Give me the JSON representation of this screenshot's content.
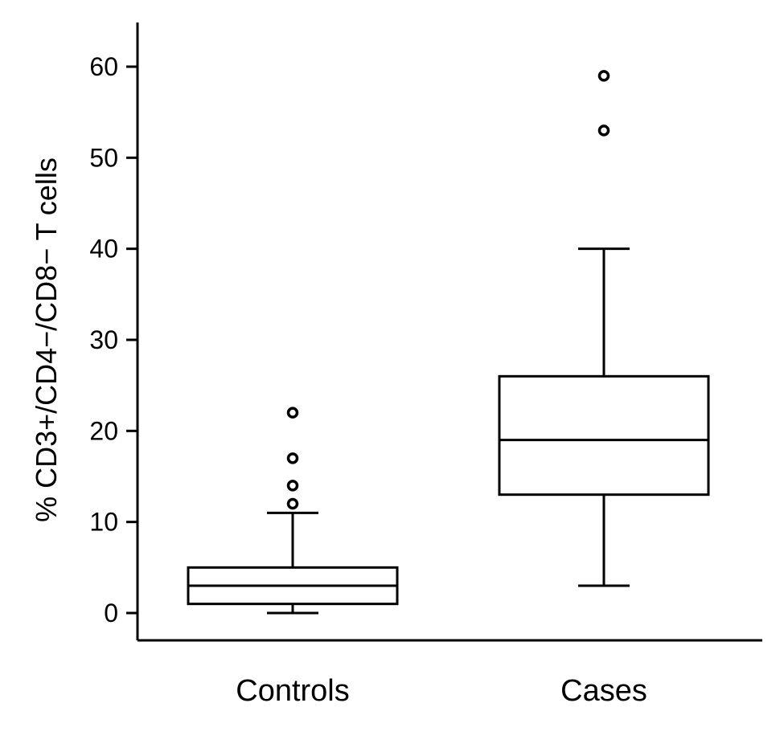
{
  "chart_data": {
    "type": "box",
    "ylabel": "% CD3+/CD4−/CD8− T cells",
    "xlabel": "",
    "ylim": [
      -3,
      65
    ],
    "yticks": [
      0,
      10,
      20,
      30,
      40,
      50,
      60
    ],
    "categories": [
      "Controls",
      "Cases"
    ],
    "boxes": [
      {
        "category": "Controls",
        "whisker_low": 0,
        "q1": 1,
        "median": 3,
        "q3": 5,
        "whisker_high": 11,
        "outliers": [
          12,
          14,
          17,
          22
        ]
      },
      {
        "category": "Cases",
        "whisker_low": 3,
        "q1": 13,
        "median": 19,
        "q3": 26,
        "whisker_high": 40,
        "outliers": [
          53,
          59
        ]
      }
    ],
    "grid": false
  }
}
